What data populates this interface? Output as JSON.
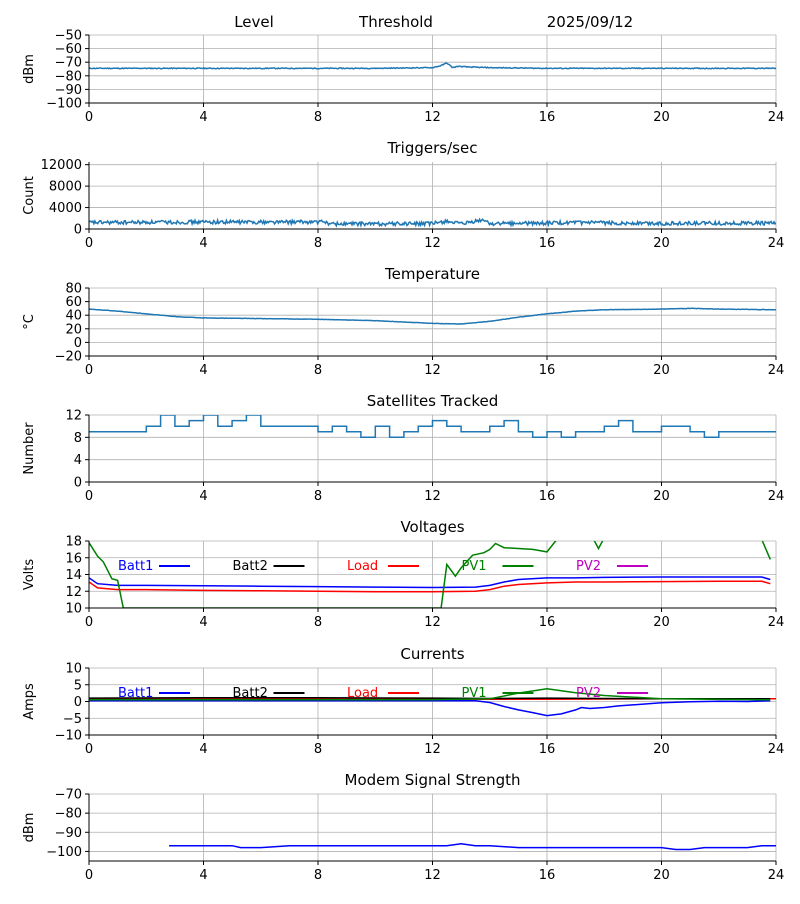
{
  "header": {
    "level": "Level",
    "threshold": "Threshold",
    "date": "2025/09/12"
  },
  "x_ticks": [
    "0",
    "4",
    "8",
    "12",
    "16",
    "20",
    "24"
  ],
  "colors": {
    "default": "#1f77b4",
    "batt1": "#0000ff",
    "batt2": "#000000",
    "load": "#ff0000",
    "pv1": "#008000",
    "pv2": "#bf00bf",
    "grid": "#b0b0b0"
  },
  "chart_data": [
    {
      "type": "line",
      "title": "",
      "ylabel": "dBm",
      "xlim": [
        0,
        24
      ],
      "ylim": [
        -100,
        -50
      ],
      "yticks": [
        -100,
        -90,
        -80,
        -70,
        -60,
        -50
      ],
      "series": [
        {
          "color": "#1f77b4",
          "noise": 0.6,
          "x": [
            0,
            2,
            4,
            6,
            8,
            10,
            12,
            12.3,
            12.5,
            12.7,
            12.9,
            13.2,
            14,
            16,
            18,
            20,
            22,
            24
          ],
          "y": [
            -74.5,
            -74.5,
            -74.5,
            -74.5,
            -74.5,
            -74.5,
            -74,
            -72.5,
            -70.5,
            -74,
            -73,
            -73.5,
            -74,
            -74.5,
            -74.5,
            -74.5,
            -74.5,
            -74.5
          ]
        }
      ]
    },
    {
      "type": "line",
      "title": "Triggers/sec",
      "ylabel": "Count",
      "xlim": [
        0,
        24
      ],
      "ylim": [
        0,
        12500
      ],
      "yticks": [
        0,
        4000,
        8000,
        12000
      ],
      "series": [
        {
          "color": "#1f77b4",
          "noise": 700,
          "x": [
            0,
            4,
            8.3,
            8.4,
            12,
            12.5,
            13,
            13.8,
            14,
            16,
            16.5,
            18,
            18.3,
            20,
            24
          ],
          "y": [
            1200,
            1300,
            1300,
            950,
            1000,
            1500,
            900,
            1700,
            1000,
            1100,
            1150,
            1150,
            1100,
            1050,
            1100
          ]
        }
      ]
    },
    {
      "type": "line",
      "title": "Temperature",
      "ylabel": "°C",
      "xlim": [
        0,
        24
      ],
      "ylim": [
        -20,
        80
      ],
      "yticks": [
        -20,
        0,
        20,
        40,
        60,
        80
      ],
      "series": [
        {
          "color": "#1f77b4",
          "noise": 0.5,
          "x": [
            0,
            1,
            2,
            3,
            4,
            6,
            8,
            10,
            11,
            12,
            13,
            14,
            15,
            16,
            17,
            18,
            20,
            21,
            22,
            24
          ],
          "y": [
            49,
            46,
            42,
            38,
            36,
            35,
            34,
            32,
            30,
            28,
            27,
            31,
            37,
            42,
            46,
            48,
            49,
            50,
            49,
            48
          ]
        }
      ]
    },
    {
      "type": "line",
      "title": "Satellites Tracked",
      "ylabel": "Number",
      "xlim": [
        0,
        24
      ],
      "ylim": [
        0,
        12
      ],
      "yticks": [
        0,
        4,
        8,
        12
      ],
      "series": [
        {
          "color": "#1f77b4",
          "step": true,
          "x": [
            0,
            0.5,
            1.0,
            1.5,
            2.0,
            2.5,
            3.0,
            3.5,
            4.0,
            4.5,
            5.0,
            5.5,
            6.0,
            6.5,
            7.0,
            7.5,
            8.0,
            8.5,
            9.0,
            9.5,
            10.0,
            10.5,
            11.0,
            11.5,
            12.0,
            12.5,
            13.0,
            13.5,
            14.0,
            14.5,
            15.0,
            15.5,
            16.0,
            16.5,
            17.0,
            17.5,
            18.0,
            18.5,
            19.0,
            19.5,
            20.0,
            20.5,
            21.0,
            21.5,
            22.0,
            22.5,
            23.0,
            23.5,
            24.0
          ],
          "y": [
            9,
            9,
            9,
            9,
            10,
            12,
            10,
            11,
            12,
            10,
            11,
            12,
            10,
            10,
            10,
            10,
            9,
            10,
            9,
            8,
            10,
            8,
            9,
            10,
            11,
            10,
            9,
            9,
            10,
            11,
            9,
            8,
            9,
            8,
            9,
            9,
            10,
            11,
            9,
            9,
            10,
            10,
            9,
            8,
            9,
            9,
            9,
            9,
            9
          ]
        }
      ]
    },
    {
      "type": "line",
      "title": "Voltages",
      "ylabel": "Volts",
      "xlim": [
        0,
        24
      ],
      "ylim": [
        10,
        18
      ],
      "yticks": [
        10,
        12,
        14,
        16,
        18
      ],
      "legend": [
        "Batt1",
        "Batt2",
        "Load",
        "PV1",
        "PV2"
      ],
      "series": [
        {
          "name": "Batt1",
          "color": "#0000ff",
          "x": [
            0,
            0.3,
            1,
            2,
            4,
            6,
            8,
            10,
            12,
            13.5,
            14,
            14.5,
            15,
            16,
            17,
            18,
            20,
            22,
            23.5,
            23.8
          ],
          "y": [
            13.6,
            12.9,
            12.7,
            12.7,
            12.65,
            12.6,
            12.55,
            12.5,
            12.45,
            12.5,
            12.7,
            13.1,
            13.4,
            13.6,
            13.6,
            13.65,
            13.7,
            13.7,
            13.7,
            13.4
          ]
        },
        {
          "name": "Load",
          "color": "#ff0000",
          "x": [
            0,
            0.3,
            1,
            2,
            4,
            6,
            8,
            10,
            12,
            13.5,
            14,
            14.5,
            15,
            16,
            17,
            18,
            20,
            22,
            23.5,
            23.8
          ],
          "y": [
            13.1,
            12.4,
            12.2,
            12.2,
            12.1,
            12.05,
            12.0,
            11.95,
            11.95,
            12.0,
            12.2,
            12.6,
            12.8,
            13.0,
            13.1,
            13.1,
            13.15,
            13.2,
            13.2,
            12.9
          ]
        },
        {
          "name": "PV1",
          "color": "#008000",
          "x": [
            0,
            0.3,
            0.5,
            0.8,
            1.0,
            1.2,
            12.3,
            12.5,
            12.8,
            13.0,
            13.4,
            13.8,
            14.0,
            14.2,
            14.5,
            15,
            15.5,
            16,
            16.3,
            16.5,
            17.5,
            17.8,
            18.1,
            23.4,
            23.8
          ],
          "y": [
            17.8,
            16.2,
            15.5,
            13.5,
            13.3,
            10,
            10,
            15.2,
            13.8,
            14.8,
            16.3,
            16.6,
            17.0,
            17.7,
            17.2,
            17.1,
            17.0,
            16.7,
            18,
            19,
            19,
            17.1,
            19,
            19,
            15.8
          ]
        }
      ]
    },
    {
      "type": "line",
      "title": "Currents",
      "ylabel": "Amps",
      "xlim": [
        0,
        24
      ],
      "ylim": [
        -10,
        10
      ],
      "yticks": [
        -10,
        -5,
        0,
        5,
        10
      ],
      "legend": [
        "Batt1",
        "Batt2",
        "Load",
        "PV1",
        "PV2"
      ],
      "series": [
        {
          "name": "Batt1",
          "color": "#0000ff",
          "x": [
            0,
            2,
            4,
            8,
            12,
            13.5,
            14,
            14.5,
            15,
            15.5,
            16,
            16.5,
            17,
            17.2,
            17.5,
            18,
            18.5,
            20,
            21,
            22,
            23,
            23.8
          ],
          "y": [
            0.2,
            0.2,
            0.2,
            0.2,
            0.2,
            0.2,
            -0.3,
            -1.5,
            -2.5,
            -3.3,
            -4.2,
            -3.7,
            -2.5,
            -1.8,
            -2.1,
            -1.8,
            -1.3,
            -0.4,
            -0.1,
            0.1,
            0.0,
            0.2
          ]
        },
        {
          "name": "Load",
          "color": "#ff0000",
          "x": [
            0,
            4,
            8,
            12,
            16,
            20,
            24
          ],
          "y": [
            0.8,
            0.8,
            0.8,
            0.7,
            0.7,
            0.8,
            0.8
          ]
        },
        {
          "name": "Batt2",
          "color": "#000000",
          "x": [
            0,
            4,
            8,
            12,
            14,
            16,
            18,
            20,
            22,
            23.8
          ],
          "y": [
            1.0,
            1.1,
            1.1,
            1.0,
            0.9,
            1.0,
            0.9,
            0.8,
            0.8,
            0.8
          ]
        },
        {
          "name": "PV1",
          "color": "#008000",
          "x": [
            0,
            4,
            8,
            12,
            14,
            15,
            16,
            17,
            18,
            20,
            23.8
          ],
          "y": [
            0.5,
            0.5,
            0.5,
            0.5,
            0.8,
            2.5,
            3.8,
            2.6,
            1.8,
            0.8,
            0.5
          ]
        }
      ]
    },
    {
      "type": "line",
      "title": "Modem Signal Strength",
      "ylabel": "dBm",
      "xlim": [
        0,
        24
      ],
      "ylim": [
        -105,
        -70
      ],
      "yticks": [
        -100,
        -90,
        -80,
        -70
      ],
      "series": [
        {
          "color": "#0000ff",
          "x": [
            2.8,
            5,
            5.3,
            6,
            7,
            8,
            10,
            12,
            12.5,
            13,
            13.5,
            14,
            15,
            16,
            18,
            20,
            20.5,
            21,
            21.5,
            22,
            23,
            23.5,
            24
          ],
          "y": [
            -97,
            -97,
            -98,
            -98,
            -97,
            -97,
            -97,
            -97,
            -97,
            -96,
            -97,
            -97,
            -98,
            -98,
            -98,
            -98,
            -99,
            -99,
            -98,
            -98,
            -98,
            -97,
            -97
          ]
        }
      ]
    }
  ]
}
